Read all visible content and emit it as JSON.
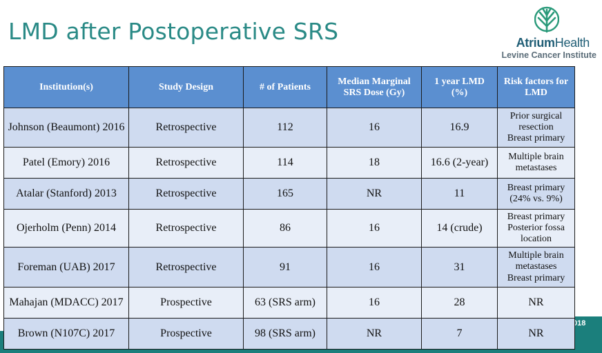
{
  "slide": {
    "title": "LMD after Postoperative SRS",
    "year_badge": "018"
  },
  "logo": {
    "brand_bold": "Atrium",
    "brand_light": "Health",
    "subtitle": "Levine Cancer Institute",
    "colors": {
      "brand": "#1f5d75",
      "accent": "#2a9a7a"
    }
  },
  "colors": {
    "header": "#5b8fd0",
    "title": "#2a8a86",
    "band": "#1b7f7c"
  },
  "table": {
    "headers": {
      "institution": "Institution(s)",
      "design": "Study Design",
      "patients": "# of Patients",
      "dose_1": "Median Marginal",
      "dose_2": "SRS Dose (Gy)",
      "lmd_1": "1 year LMD",
      "lmd_2": "(%)",
      "risk_1": "Risk factors for",
      "risk_2": "LMD"
    },
    "rows": [
      {
        "institution": "Johnson (Beaumont) 2016",
        "design": "Retrospective",
        "patients": "112",
        "dose": "16",
        "lmd": "16.9",
        "risk": [
          "Prior surgical",
          "resection",
          "Breast primary"
        ]
      },
      {
        "institution": "Patel (Emory) 2016",
        "design": "Retrospective",
        "patients": "114",
        "dose": "18",
        "lmd": "16.6 (2-year)",
        "risk": [
          "Multiple brain",
          "metastases"
        ]
      },
      {
        "institution": "Atalar (Stanford) 2013",
        "design": "Retrospective",
        "patients": "165",
        "dose": "NR",
        "lmd": "11",
        "risk": [
          "Breast primary",
          "(24% vs. 9%)"
        ]
      },
      {
        "institution": "Ojerholm (Penn) 2014",
        "design": "Retrospective",
        "patients": "86",
        "dose": "16",
        "lmd": "14 (crude)",
        "risk": [
          "Breast primary",
          "Posterior fossa",
          "location"
        ]
      },
      {
        "institution": "Foreman (UAB) 2017",
        "design": "Retrospective",
        "patients": "91",
        "dose": "16",
        "lmd": "31",
        "risk": [
          "Multiple brain",
          "metastases",
          "Breast primary"
        ]
      },
      {
        "institution": "Mahajan (MDACC) 2017",
        "design": "Prospective",
        "patients": "63 (SRS arm)",
        "dose": "16",
        "lmd": "28",
        "risk": [
          "NR"
        ]
      },
      {
        "institution": "Brown (N107C) 2017",
        "design": "Prospective",
        "patients": "98 (SRS arm)",
        "dose": "NR",
        "lmd": "7",
        "risk": [
          "NR"
        ]
      }
    ]
  }
}
